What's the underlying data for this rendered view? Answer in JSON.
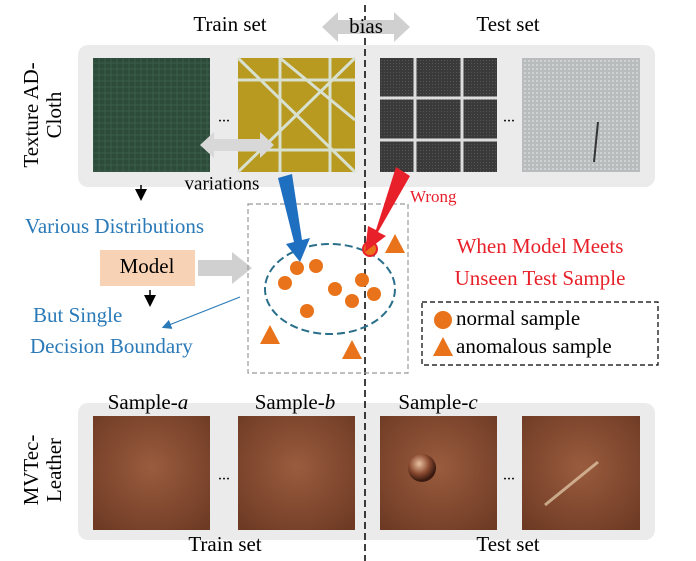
{
  "header": {
    "train_set": "Train set",
    "bias": "bias",
    "test_set": "Test set"
  },
  "rows": [
    {
      "label": [
        "Texture AD-",
        "Cloth"
      ]
    },
    {
      "label": [
        "MVTec-",
        "Leather"
      ]
    }
  ],
  "ellipsis": "...",
  "variations": "variations",
  "wrong": "Wrong",
  "various_distributions": "Various Distributions",
  "model": "Model",
  "but_single": [
    "But Single",
    "Decision Boundary"
  ],
  "unseen": [
    "When Model Meets",
    "Unseen Test Sample"
  ],
  "legend": {
    "normal": "normal sample",
    "anomalous": "anomalous sample"
  },
  "samples": [
    {
      "prefix": "Sample-",
      "letter": "a"
    },
    {
      "prefix": "Sample-",
      "letter": "b"
    },
    {
      "prefix": "Sample-",
      "letter": "c"
    }
  ],
  "footer": {
    "train_set": "Train set",
    "test_set": "Test set"
  }
}
